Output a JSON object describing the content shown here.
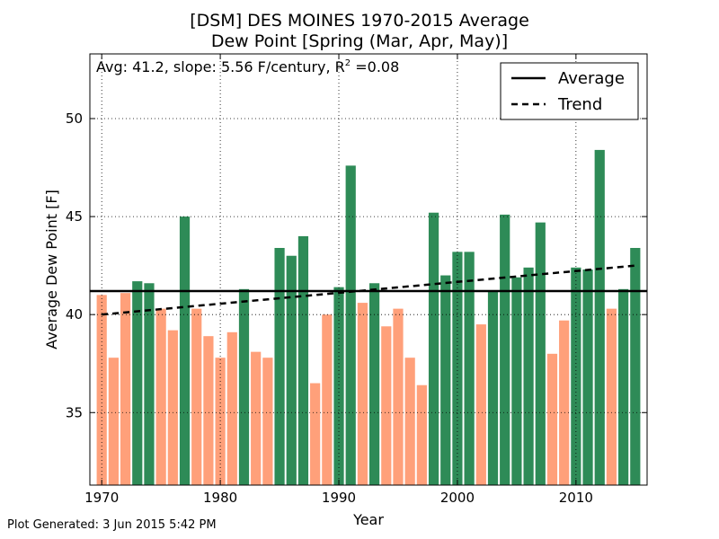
{
  "title_line1": "[DSM] DES MOINES 1970-2015 Average",
  "title_line2": "Dew Point [Spring (Mar, Apr, May)]",
  "footer": "Plot Generated: 3 Jun 2015 5:42 PM",
  "annotation": {
    "prefix": "Avg: 41.2, slope: 5.56 F/century, R",
    "superscript": "2",
    "suffix": " =0.08"
  },
  "colors": {
    "above": "#2e8b57",
    "below": "#ffa07a",
    "line": "#000000"
  },
  "chart_data": {
    "type": "bar",
    "xlabel": "Year",
    "ylabel": "Average Dew Point [F]",
    "xlim": [
      1969,
      2016
    ],
    "ylim": [
      31.3,
      53.3
    ],
    "xticks": [
      1970,
      1980,
      1990,
      2000,
      2010
    ],
    "yticks": [
      35,
      40,
      45,
      50
    ],
    "grid": true,
    "average": 41.2,
    "trend": {
      "start": [
        1970,
        40.0
      ],
      "end": [
        2015,
        42.5
      ]
    },
    "legend": {
      "placement": "top-right",
      "entries": [
        "Average",
        "Trend"
      ]
    },
    "x": [
      1970,
      1971,
      1972,
      1973,
      1974,
      1975,
      1976,
      1977,
      1978,
      1979,
      1980,
      1981,
      1982,
      1983,
      1984,
      1985,
      1986,
      1987,
      1988,
      1989,
      1990,
      1991,
      1992,
      1993,
      1994,
      1995,
      1996,
      1997,
      1998,
      1999,
      2000,
      2001,
      2002,
      2003,
      2004,
      2005,
      2006,
      2007,
      2008,
      2009,
      2010,
      2011,
      2012,
      2013,
      2014,
      2015
    ],
    "values": [
      41.0,
      37.8,
      41.1,
      41.7,
      41.6,
      40.3,
      39.2,
      45.0,
      40.3,
      38.9,
      37.8,
      39.1,
      41.3,
      38.1,
      37.8,
      43.4,
      43.0,
      44.0,
      36.5,
      40.0,
      41.4,
      47.6,
      40.6,
      41.6,
      39.4,
      40.3,
      37.8,
      36.4,
      45.2,
      42.0,
      43.2,
      43.2,
      39.5,
      41.2,
      45.1,
      41.9,
      42.4,
      44.7,
      38.0,
      39.7,
      42.4,
      42.3,
      48.4,
      40.3,
      41.3,
      43.4
    ]
  }
}
